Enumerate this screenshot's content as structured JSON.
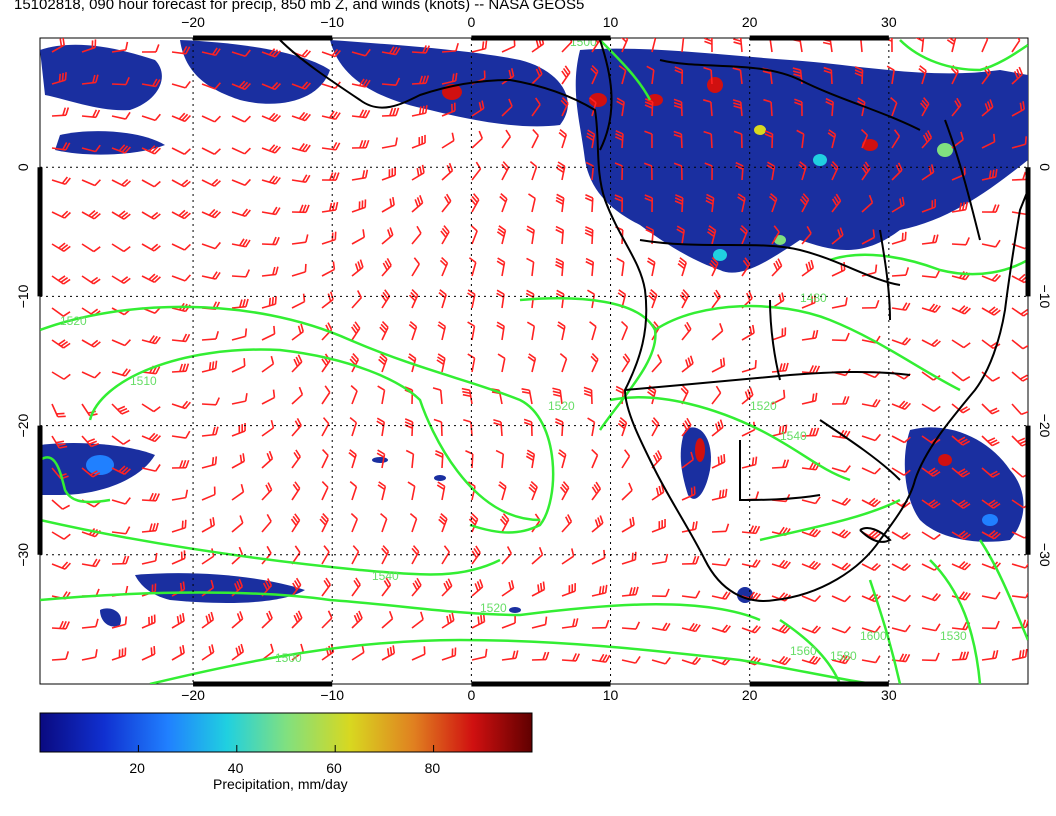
{
  "title": "15102818, 090 hour forecast for precip, 850 mb Z, and winds (knots) -- NASA GEOS5",
  "map": {
    "lon_ticks": [
      "−20",
      "−10",
      "0",
      "10",
      "20",
      "30"
    ],
    "lat_ticks": [
      "0",
      "−10",
      "−20",
      "−30"
    ],
    "lon_range": [
      -31,
      40
    ],
    "lat_range": [
      -40,
      10
    ],
    "contour_labels": [
      "1520",
      "1510",
      "1520",
      "1540",
      "1520",
      "1500",
      "1480",
      "1500",
      "1520",
      "1540",
      "1560",
      "1580",
      "1600",
      "1530"
    ],
    "colors": {
      "wind_barbs": "#ff2222",
      "height_contours": "#33ee33",
      "coastline": "#000000",
      "grid": "#000000"
    }
  },
  "colorbar": {
    "label": "Precipitation, mm/day",
    "ticks": [
      "20",
      "40",
      "60",
      "80"
    ],
    "range": [
      0,
      100
    ],
    "colors": [
      "#0a0a80",
      "#1030d0",
      "#2080ff",
      "#20d0e0",
      "#80e080",
      "#d8d820",
      "#e08020",
      "#d01010",
      "#600000"
    ]
  }
}
